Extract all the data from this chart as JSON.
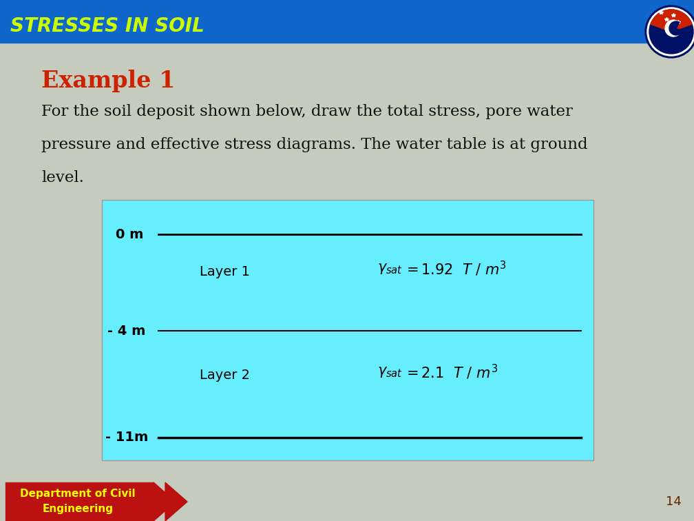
{
  "title": "STRESSES IN SOIL",
  "title_color": "#CCFF00",
  "header_bg_color": "#1166CC",
  "body_bg_color": "#C5CCBE",
  "example_title": "Example 1",
  "example_title_color": "#CC2200",
  "body_text_line1": "For the soil deposit shown below, draw the total stress, pore water",
  "body_text_line2": "pressure and effective stress diagrams. The water table is at ground",
  "body_text_line3": "level.",
  "body_text_color": "#111111",
  "diagram_bg_color": "#66EEFF",
  "layer1_label": "Layer 1",
  "layer2_label": "Layer 2",
  "depth_0": "0 m",
  "depth_4": "- 4 m",
  "depth_11": "- 11m",
  "footer_label1": "Department of Civil",
  "footer_label2": "Engineering",
  "footer_bg_color": "#BB1111",
  "footer_text_color": "#FFFF00",
  "page_number": "14",
  "page_number_color": "#662200"
}
